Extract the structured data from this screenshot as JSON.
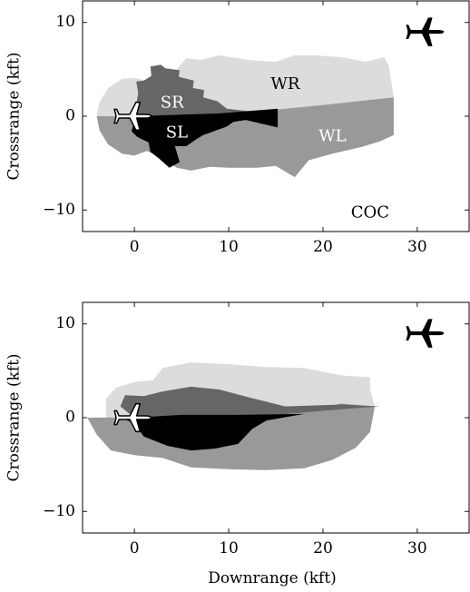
{
  "colors": {
    "WR": "#dcdcdc",
    "WL": "#999999",
    "SR": "#666666",
    "SL": "#000000",
    "COC": "#ffffff",
    "frame": "#000000"
  },
  "icons": {
    "intruder": "airplane-icon",
    "ownship": "airplane-outline-icon"
  },
  "chart_data": [
    {
      "type": "heatmap",
      "xlabel": "",
      "ylabel": "Crossrange (kft)",
      "xlim": [
        -5.5,
        35.5
      ],
      "ylim": [
        -12.3,
        12.3
      ],
      "xticks": [
        0,
        10,
        20,
        30
      ],
      "yticks": [
        -10,
        0,
        10
      ],
      "xtick_labels": [
        "0",
        "10",
        "20",
        "30"
      ],
      "ytick_labels": [
        "−10",
        "0",
        "10"
      ],
      "grid": false,
      "legend": "none",
      "intruder_position": [
        31,
        9
      ],
      "ownship_position": [
        0,
        0
      ],
      "annotations": [
        {
          "text": "WR",
          "x": 16,
          "y": 3.4,
          "color": "#000000"
        },
        {
          "text": "SR",
          "x": 4,
          "y": 1.4,
          "color": "#ffffff"
        },
        {
          "text": "SL",
          "x": 4.5,
          "y": -1.8,
          "color": "#ffffff"
        },
        {
          "text": "WL",
          "x": 21,
          "y": -2.2,
          "color": "#ffffff"
        },
        {
          "text": "COC",
          "x": 25,
          "y": -10.3,
          "color": "#000000"
        }
      ],
      "regions": [
        {
          "label": "WR",
          "polygon": [
            [
              0,
              0
            ],
            [
              -4,
              0
            ],
            [
              -3.7,
              1.5
            ],
            [
              -2.8,
              3
            ],
            [
              -1.3,
              4
            ],
            [
              0,
              4.1
            ],
            [
              1.5,
              3.7
            ],
            [
              2.7,
              3.9
            ],
            [
              4.5,
              5
            ],
            [
              5.5,
              6.2
            ],
            [
              7,
              6
            ],
            [
              9,
              6.5
            ],
            [
              12,
              6
            ],
            [
              15,
              5.8
            ],
            [
              17,
              6.5
            ],
            [
              19,
              6.5
            ],
            [
              22,
              6.3
            ],
            [
              24.5,
              5.8
            ],
            [
              26.5,
              6.3
            ],
            [
              27,
              5.3
            ],
            [
              27.5,
              2
            ],
            [
              20,
              1.2
            ],
            [
              12,
              0.4
            ],
            [
              5,
              0.1
            ]
          ]
        },
        {
          "label": "WL",
          "polygon": [
            [
              0,
              0
            ],
            [
              -4,
              0
            ],
            [
              -3.7,
              -1.5
            ],
            [
              -2.8,
              -3
            ],
            [
              -1.3,
              -4
            ],
            [
              0,
              -4.2
            ],
            [
              1.3,
              -3.7
            ],
            [
              2.7,
              -4.3
            ],
            [
              4.5,
              -5.5
            ],
            [
              6,
              -5.8
            ],
            [
              8,
              -5.4
            ],
            [
              10,
              -5.5
            ],
            [
              13,
              -5.5
            ],
            [
              15,
              -5.3
            ],
            [
              17,
              -6.5
            ],
            [
              18.5,
              -4.7
            ],
            [
              21,
              -4
            ],
            [
              24,
              -3.3
            ],
            [
              26,
              -2.7
            ],
            [
              27.5,
              -2
            ],
            [
              27.5,
              2
            ],
            [
              20,
              1.2
            ],
            [
              12,
              0.4
            ],
            [
              5,
              0.1
            ]
          ]
        },
        {
          "label": "SR",
          "polygon": [
            [
              0,
              0
            ],
            [
              0.4,
              2.5
            ],
            [
              0.2,
              3.7
            ],
            [
              1,
              3.8
            ],
            [
              1.8,
              4.3
            ],
            [
              1.7,
              5.3
            ],
            [
              2.8,
              5.5
            ],
            [
              3.3,
              5.1
            ],
            [
              4.8,
              4.9
            ],
            [
              4.7,
              4.2
            ],
            [
              6.3,
              3.8
            ],
            [
              6.2,
              3
            ],
            [
              7.4,
              2.8
            ],
            [
              7.3,
              2
            ],
            [
              8.8,
              1.6
            ],
            [
              9.8,
              0.8
            ],
            [
              14,
              0.3
            ]
          ]
        },
        {
          "label": "SL",
          "polygon": [
            [
              0,
              0
            ],
            [
              0,
              -0.5
            ],
            [
              -0.3,
              -1.6
            ],
            [
              0.3,
              -2.2
            ],
            [
              1.5,
              -2.8
            ],
            [
              1.7,
              -3.8
            ],
            [
              2.6,
              -4.5
            ],
            [
              3.7,
              -5.5
            ],
            [
              4.8,
              -4.9
            ],
            [
              4.3,
              -3.2
            ],
            [
              5.5,
              -3.2
            ],
            [
              6.5,
              -2.5
            ],
            [
              7.3,
              -2
            ],
            [
              9.8,
              -1.1
            ],
            [
              10.5,
              -0.6
            ],
            [
              11.8,
              -0.4
            ],
            [
              15.2,
              -1.2
            ],
            [
              15.2,
              0.8
            ],
            [
              9,
              0.3
            ]
          ]
        }
      ]
    },
    {
      "type": "heatmap",
      "xlabel": "Downrange (kft)",
      "ylabel": "Crossrange (kft)",
      "xlim": [
        -5.5,
        35.5
      ],
      "ylim": [
        -12.3,
        12.3
      ],
      "xticks": [
        0,
        10,
        20,
        30
      ],
      "yticks": [
        -10,
        0,
        10
      ],
      "xtick_labels": [
        "0",
        "10",
        "20",
        "30"
      ],
      "ytick_labels": [
        "−10",
        "0",
        "10"
      ],
      "grid": false,
      "legend": "none",
      "intruder_position": [
        31,
        9
      ],
      "ownship_position": [
        0,
        0
      ],
      "annotations": [],
      "regions": [
        {
          "label": "WR",
          "polygon": [
            [
              -3,
              0
            ],
            [
              -3,
              2
            ],
            [
              -2,
              3.2
            ],
            [
              -1,
              3.5
            ],
            [
              0,
              3.8
            ],
            [
              2,
              4
            ],
            [
              3,
              5.3
            ],
            [
              6,
              5.9
            ],
            [
              10,
              5.7
            ],
            [
              14,
              5.4
            ],
            [
              18,
              5.3
            ],
            [
              22,
              4.5
            ],
            [
              25,
              4.3
            ],
            [
              25,
              3
            ],
            [
              25.5,
              1.2
            ],
            [
              22,
              1
            ],
            [
              16,
              0.5
            ],
            [
              8,
              0.2
            ],
            [
              0,
              0
            ]
          ]
        },
        {
          "label": "WL",
          "polygon": [
            [
              -5,
              0
            ],
            [
              -4,
              -1.8
            ],
            [
              -2.5,
              -3.5
            ],
            [
              0,
              -4
            ],
            [
              3,
              -4.3
            ],
            [
              6,
              -5.3
            ],
            [
              10,
              -5.5
            ],
            [
              14,
              -5.6
            ],
            [
              18,
              -5.4
            ],
            [
              21,
              -4.5
            ],
            [
              23.5,
              -3.2
            ],
            [
              25,
              -1.5
            ],
            [
              25.5,
              1.2
            ],
            [
              22,
              1.5
            ],
            [
              18,
              0.8
            ],
            [
              12,
              0.4
            ],
            [
              5,
              0.1
            ]
          ]
        },
        {
          "label": "SR",
          "polygon": [
            [
              0,
              0
            ],
            [
              -1.5,
              1.2
            ],
            [
              -1,
              2.4
            ],
            [
              1,
              2.3
            ],
            [
              3,
              2.8
            ],
            [
              6,
              3.3
            ],
            [
              9,
              3
            ],
            [
              12,
              2.2
            ],
            [
              16,
              1.2
            ],
            [
              22,
              1.4
            ],
            [
              26,
              1.2
            ],
            [
              22,
              0.9
            ],
            [
              15,
              0.3
            ],
            [
              8,
              0.1
            ]
          ]
        },
        {
          "label": "SL",
          "polygon": [
            [
              0,
              0
            ],
            [
              -1.5,
              0
            ],
            [
              0,
              -0.6
            ],
            [
              1,
              -2
            ],
            [
              3.5,
              -3
            ],
            [
              6,
              -3.5
            ],
            [
              8.5,
              -3.3
            ],
            [
              11,
              -2.8
            ],
            [
              12.5,
              -1.2
            ],
            [
              14,
              -0.3
            ],
            [
              18,
              0.4
            ],
            [
              11,
              0.3
            ],
            [
              5,
              0.3
            ]
          ]
        }
      ]
    }
  ]
}
